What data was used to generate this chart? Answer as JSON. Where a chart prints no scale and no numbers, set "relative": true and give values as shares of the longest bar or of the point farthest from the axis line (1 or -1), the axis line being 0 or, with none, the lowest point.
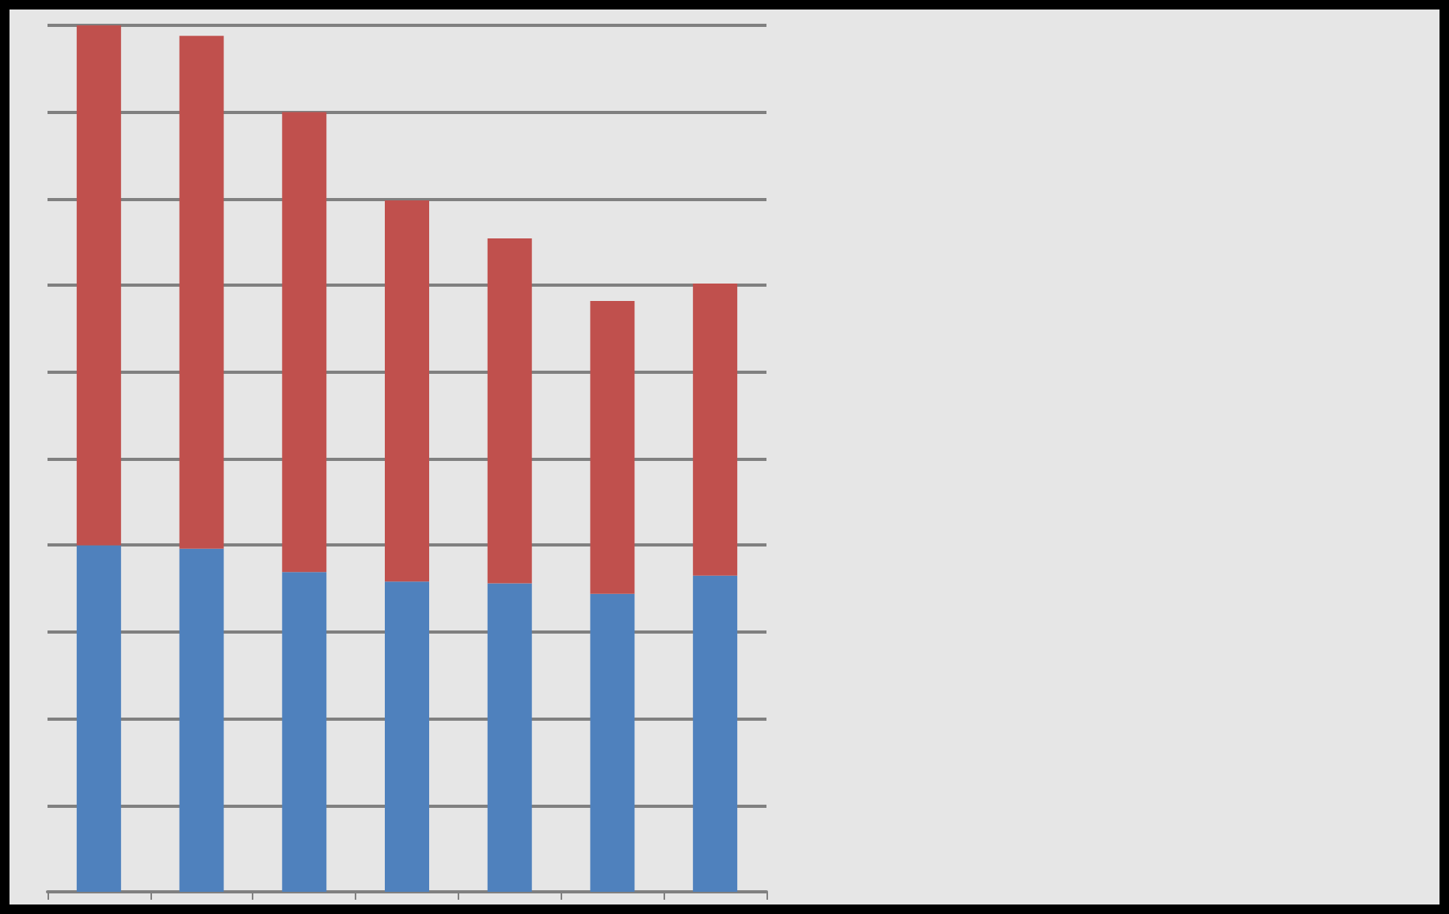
{
  "chart_data": {
    "type": "bar",
    "stacked": true,
    "relative": true,
    "grid": "y",
    "categories": [
      null,
      null,
      null,
      null,
      null,
      null,
      null
    ],
    "series": [
      {
        "color": "#4f81bd",
        "values": [
          0.4,
          0.396,
          0.369,
          0.358,
          0.356,
          0.344,
          0.365
        ]
      },
      {
        "color": "#c0504d",
        "values": [
          0.6,
          0.592,
          0.531,
          0.44,
          0.398,
          0.338,
          0.337
        ]
      }
    ]
  }
}
